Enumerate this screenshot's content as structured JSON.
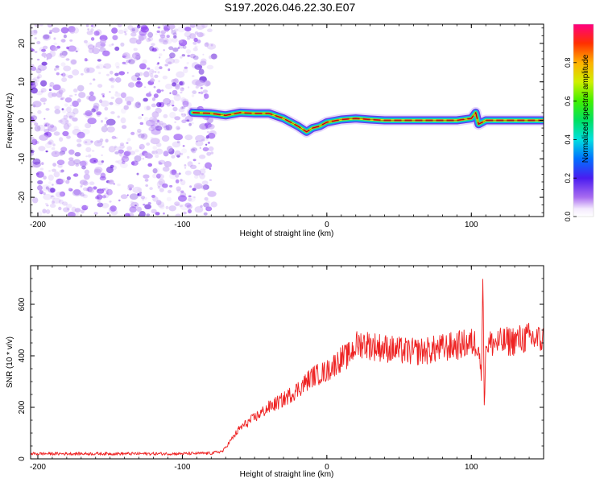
{
  "title": "S197.2026.046.22.30.E07",
  "chart_data": [
    {
      "type": "heatmap",
      "xlabel": "Height of straight line (km)",
      "ylabel": "Frequency (Hz)",
      "xlim": [
        -205,
        150
      ],
      "ylim": [
        -25,
        25
      ],
      "xticks": [
        -200,
        -100,
        0,
        100
      ],
      "yticks": [
        -20,
        -10,
        0,
        10,
        20
      ],
      "tick_labels_x": [
        "-200",
        "-100",
        "0",
        "100"
      ],
      "tick_labels_y": [
        "-20",
        "-10",
        "0",
        "10",
        "20"
      ],
      "noise_region_x": [
        -205,
        -78
      ],
      "signal_region_x": [
        -93,
        150
      ],
      "ridge": {
        "x": [
          -93,
          -80,
          -70,
          -60,
          -50,
          -40,
          -30,
          -20,
          -14,
          -10,
          -5,
          0,
          10,
          20,
          30,
          40,
          50,
          60,
          70,
          80,
          90,
          100,
          103,
          105,
          110,
          120,
          130,
          140,
          150
        ],
        "y": [
          2.0,
          1.8,
          1.3,
          2.0,
          1.8,
          1.8,
          0.5,
          -1.5,
          -3.0,
          -2.0,
          -1.5,
          -0.5,
          0.2,
          0.5,
          0.2,
          0.0,
          0.0,
          0.0,
          0.0,
          0.0,
          0.0,
          0.5,
          2.0,
          -1.0,
          0.0,
          0.0,
          0.0,
          0.0,
          0.0
        ]
      },
      "colorbar": {
        "label": "Normalized spectral amplitude",
        "range": [
          0,
          1
        ],
        "ticks": [
          0.0,
          0.2,
          0.4,
          0.6,
          0.8
        ],
        "tick_labels": [
          "0.0",
          "0.2",
          "0.4",
          "0.6",
          "0.8"
        ]
      }
    },
    {
      "type": "line",
      "xlabel": "Height of straight line (km)",
      "ylabel": "SNR (10 * v/v)",
      "xlim": [
        -205,
        150
      ],
      "ylim": [
        0,
        750
      ],
      "xticks": [
        -200,
        -100,
        0,
        100
      ],
      "yticks": [
        0,
        200,
        400,
        600
      ],
      "tick_labels_x": [
        "-200",
        "-100",
        "0",
        "100"
      ],
      "tick_labels_y": [
        "0",
        "200",
        "400",
        "600"
      ],
      "series": [
        {
          "name": "SNR",
          "color": "#ee2222",
          "x": [
            -205,
            -180,
            -150,
            -120,
            -100,
            -80,
            -72,
            -68,
            -60,
            -50,
            -40,
            -30,
            -20,
            -10,
            0,
            10,
            15,
            20,
            25,
            30,
            40,
            50,
            60,
            70,
            80,
            90,
            100,
            105,
            107,
            108,
            109,
            110,
            115,
            120,
            130,
            140,
            150
          ],
          "y": [
            20,
            20,
            20,
            20,
            20,
            22,
            30,
            60,
            120,
            160,
            200,
            230,
            270,
            320,
            340,
            390,
            400,
            440,
            450,
            440,
            430,
            420,
            415,
            420,
            430,
            440,
            450,
            450,
            300,
            740,
            180,
            440,
            450,
            450,
            460,
            470,
            460
          ]
        }
      ]
    }
  ],
  "colors": {
    "noise": "#7010e0",
    "line": "#ee2222",
    "axis": "#000000"
  }
}
